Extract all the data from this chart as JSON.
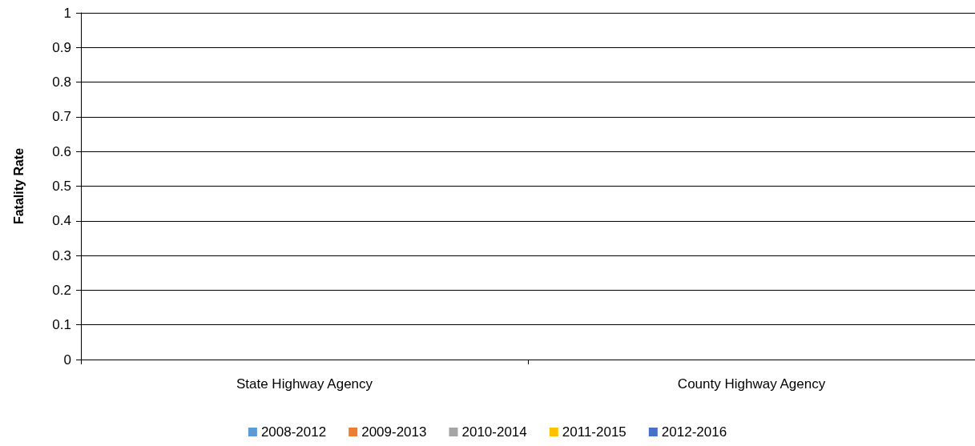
{
  "chart_data": {
    "type": "bar",
    "ylabel": "Fatality Rate",
    "categories": [
      "State Highway Agency",
      "County Highway Agency"
    ],
    "series": [
      {
        "name": "2008-2012",
        "color": "#5b9bd5",
        "values": [
          0,
          0
        ]
      },
      {
        "name": "2009-2013",
        "color": "#ed7d31",
        "values": [
          0,
          0
        ]
      },
      {
        "name": "2010-2014",
        "color": "#a5a5a5",
        "values": [
          0,
          0
        ]
      },
      {
        "name": "2011-2015",
        "color": "#ffc000",
        "values": [
          0,
          0
        ]
      },
      {
        "name": "2012-2016",
        "color": "#4472c4",
        "values": [
          0,
          0
        ]
      }
    ],
    "ylim": [
      0,
      1
    ],
    "yticks": [
      0,
      0.1,
      0.2,
      0.3,
      0.4,
      0.5,
      0.6,
      0.7,
      0.8,
      0.9,
      1
    ],
    "grid": "y",
    "legend": "bottom"
  }
}
